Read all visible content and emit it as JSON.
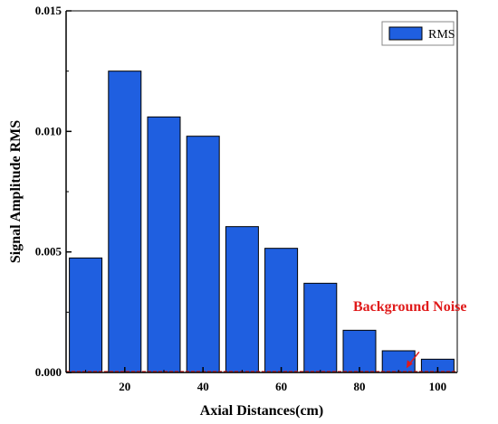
{
  "chart_data": {
    "type": "bar",
    "xlabel": "Axial Distances(cm)",
    "ylabel": "Signal Amplitude RMS",
    "x_ticks": [
      "20",
      "40",
      "60",
      "80",
      "100"
    ],
    "y_ticks": [
      "0.000",
      "0.005",
      "0.010",
      "0.015"
    ],
    "xlim": [
      5,
      105
    ],
    "ylim": [
      0,
      0.015
    ],
    "legend": "top-right",
    "grid": false,
    "series": [
      {
        "name": "RMS",
        "color": "#1f5fe0",
        "x": [
          10,
          20,
          30,
          40,
          50,
          60,
          70,
          80,
          90,
          100
        ],
        "values": [
          0.00475,
          0.0125,
          0.0106,
          0.0098,
          0.00605,
          0.00515,
          0.0037,
          0.00175,
          0.0009,
          0.00055
        ]
      }
    ],
    "annotation": {
      "text": "Background Noise",
      "color": "#e01a1a",
      "target_x": 92,
      "target_y": 0.0001
    },
    "baseline_color": "#e01a1a"
  }
}
